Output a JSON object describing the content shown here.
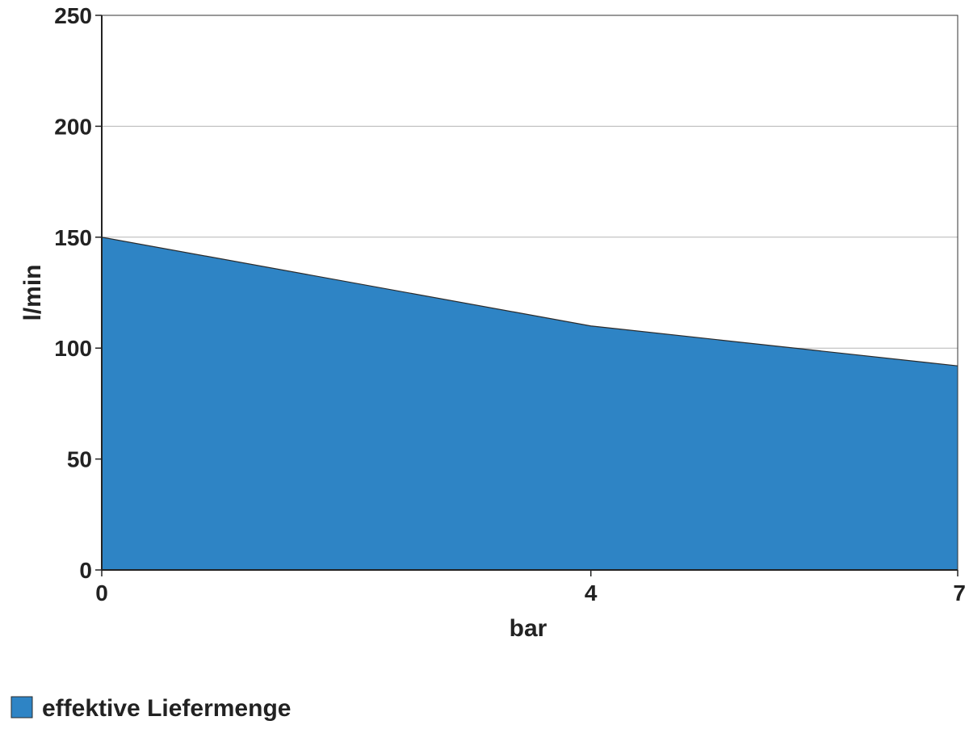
{
  "chart_data": {
    "type": "area",
    "x": [
      0,
      4,
      7
    ],
    "series": [
      {
        "name": "effektive Liefermenge",
        "values": [
          150,
          110,
          92
        ],
        "color": "#2e84c5"
      }
    ],
    "xlabel": "bar",
    "ylabel": "l/min",
    "xlim": [
      0,
      7
    ],
    "ylim": [
      0,
      250
    ],
    "xticks": [
      0,
      4,
      7
    ],
    "yticks": [
      0,
      50,
      100,
      150,
      200,
      250
    ],
    "grid": "horizontal",
    "legend": "bottom-left"
  }
}
